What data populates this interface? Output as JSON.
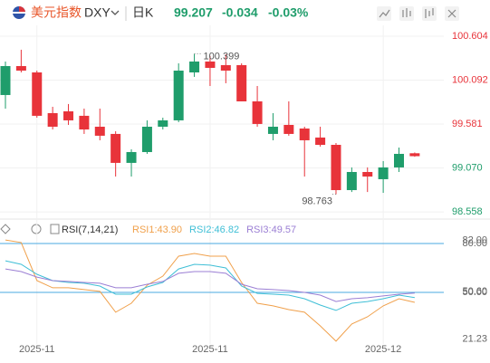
{
  "header": {
    "name": "美元指数",
    "symbol": "DXY",
    "period": "日K",
    "price": 99.207,
    "change": -0.034,
    "change_pct": "-0.03%"
  },
  "chart_data": [
    {
      "type": "candlestick",
      "categories": [
        null,
        null,
        "2025-11",
        null,
        null,
        null,
        null,
        null,
        null,
        null,
        null,
        null,
        null,
        "2025-11",
        null,
        null,
        null,
        null,
        null,
        null,
        null,
        null,
        null,
        null,
        "2025-12",
        null,
        null
      ],
      "open": [
        99.919,
        100.256,
        100.182,
        99.708,
        99.729,
        99.677,
        99.55,
        99.466,
        99.129,
        99.255,
        99.55,
        99.624,
        100.182,
        100.309,
        100.267,
        100.267,
        99.845,
        99.466,
        99.571,
        99.529,
        99.424,
        99.339,
        98.812,
        99.023,
        98.939,
        99.076,
        99.241
      ],
      "high": [
        100.309,
        100.446,
        100.203,
        99.782,
        99.814,
        99.761,
        99.761,
        99.497,
        99.287,
        99.624,
        99.655,
        100.288,
        100.399,
        100.372,
        100.393,
        100.288,
        100.024,
        99.708,
        99.845,
        99.55,
        99.55,
        99.36,
        99.076,
        99.076,
        99.15,
        99.308,
        99.25
      ],
      "low": [
        99.761,
        100.182,
        99.655,
        99.518,
        99.571,
        99.466,
        99.392,
        98.97,
        98.97,
        99.234,
        99.518,
        99.603,
        100.13,
        100.024,
        100.056,
        99.845,
        99.55,
        99.392,
        99.445,
        98.97,
        99.318,
        98.763,
        98.79,
        98.79,
        98.78,
        99.023,
        99.2
      ],
      "close": [
        100.256,
        100.203,
        99.677,
        99.55,
        99.624,
        99.518,
        99.445,
        99.129,
        99.255,
        99.55,
        99.624,
        100.203,
        100.309,
        100.235,
        100.203,
        99.845,
        99.582,
        99.55,
        99.466,
        99.392,
        99.339,
        98.812,
        99.023,
        98.97,
        99.076,
        99.234,
        99.207
      ],
      "up_color": "#1f9d6b",
      "down_color": "#e8333a",
      "ylim": [
        98.496,
        100.73
      ],
      "yticks": [
        100.604,
        100.092,
        99.581,
        {
          "value": 99.07,
          "label": "99.070"
        },
        98.558
      ],
      "annotations": [
        {
          "label": "100.399",
          "value": 100.399,
          "field": "high"
        },
        {
          "label": "98.763",
          "value": 98.763,
          "field": "low"
        }
      ]
    },
    {
      "type": "line",
      "legend_title": "RSI(7,14,21)",
      "series": [
        {
          "name": "RSI1:43.90",
          "color": "#f0a04b",
          "values": [
            82.2,
            80.6,
            57.2,
            52.8,
            52.8,
            51.7,
            50.6,
            37.8,
            43.3,
            54.4,
            60.0,
            72.2,
            73.9,
            72.2,
            72.2,
            56.1,
            43.3,
            41.7,
            39.4,
            37.8,
            29.4,
            20.0,
            30.6,
            35.0,
            41.7,
            46.1,
            43.9
          ]
        },
        {
          "name": "RSI2:46.82",
          "color": "#3fbfd6",
          "values": [
            69.4,
            67.2,
            61.1,
            57.2,
            56.1,
            55.6,
            53.9,
            48.9,
            48.9,
            53.3,
            56.1,
            64.4,
            67.2,
            66.7,
            65.0,
            53.9,
            49.4,
            48.9,
            48.3,
            46.1,
            42.2,
            38.9,
            43.3,
            44.4,
            46.1,
            48.3,
            46.82
          ]
        },
        {
          "name": "RSI3:49.57",
          "color": "#9b7fd4",
          "values": [
            64.4,
            62.8,
            59.4,
            57.2,
            56.7,
            56.1,
            55.6,
            52.8,
            52.8,
            55.0,
            56.7,
            61.7,
            62.8,
            62.8,
            61.7,
            55.0,
            52.2,
            51.7,
            51.1,
            50.0,
            48.3,
            44.4,
            46.1,
            46.7,
            47.8,
            48.9,
            49.57
          ]
        }
      ],
      "ylim": [
        18.3,
        83.9
      ],
      "yticks": [
        {
          "value": 80,
          "label": "80.00"
        },
        {
          "value": 82,
          "label": "82.00"
        },
        {
          "value": 50,
          "label": "50.00"
        },
        {
          "value": 50.6,
          "label": "50.60"
        },
        21.23
      ],
      "hlines": [
        80,
        50
      ],
      "hline_color": "#4aa8e0"
    }
  ]
}
